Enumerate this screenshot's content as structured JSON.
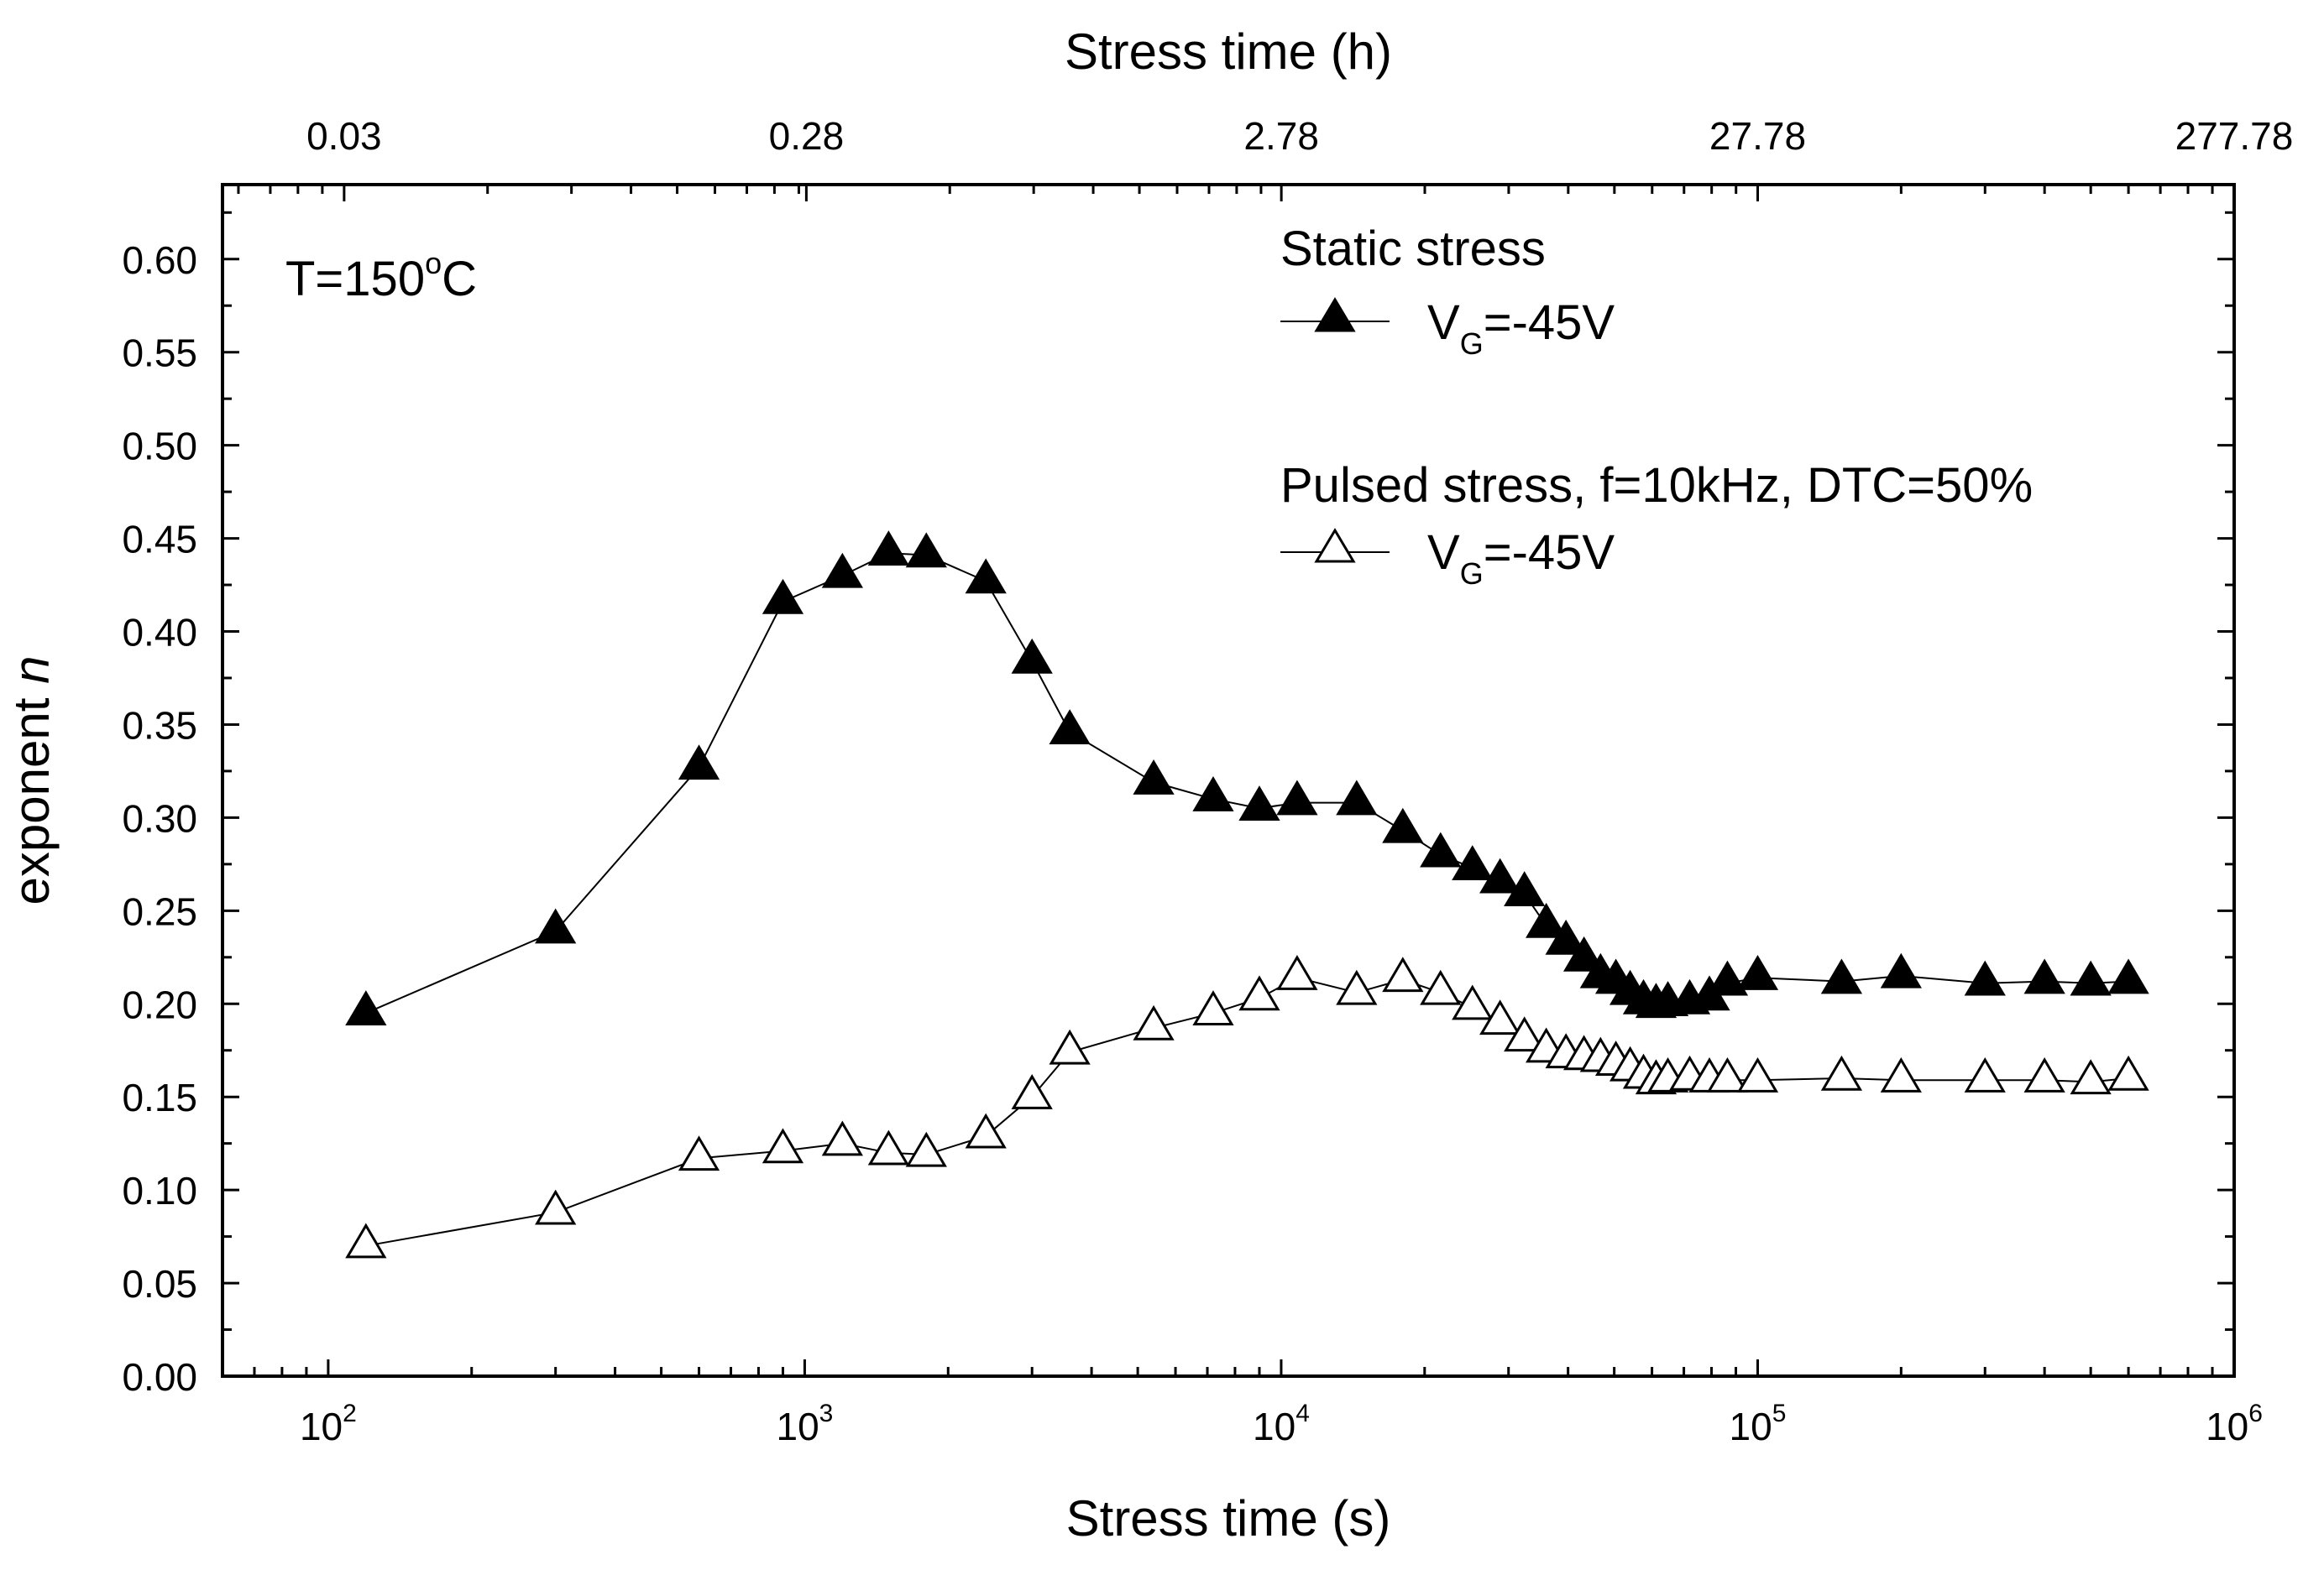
{
  "chart_data": {
    "type": "scatter",
    "x_scale": "log",
    "xlim": [
      60,
      1000000
    ],
    "ylim": [
      0,
      0.64
    ],
    "xlabel": "Stress time (s)",
    "top_xlabel": "Stress time (h)",
    "ylabel": "exponent",
    "ylabel_var": "n",
    "annotation": {
      "prefix": "T=150",
      "sup": "o",
      "suffix": "C"
    },
    "y_ticks": [
      "0.00",
      "0.05",
      "0.10",
      "0.15",
      "0.20",
      "0.25",
      "0.30",
      "0.35",
      "0.40",
      "0.45",
      "0.50",
      "0.55",
      "0.60"
    ],
    "x_ticks": [
      {
        "base": "10",
        "exp": "2"
      },
      {
        "base": "10",
        "exp": "3"
      },
      {
        "base": "10",
        "exp": "4"
      },
      {
        "base": "10",
        "exp": "5"
      },
      {
        "base": "10",
        "exp": "6"
      }
    ],
    "top_ticks": [
      "0.03",
      "0.28",
      "2.78",
      "27.78",
      "277.78"
    ],
    "legend": {
      "static_header": "Static stress",
      "pulsed_header": "Pulsed stress, f=10kHz, DTC=50%",
      "entry_prefix": "V",
      "entry_sub": "G",
      "entry_suffix": "=-45V"
    },
    "series": [
      {
        "marker": "filled-triangle",
        "x": [
          120,
          300,
          600,
          900,
          1200,
          1500,
          1800,
          2400,
          3000,
          3600,
          5400,
          7200,
          9000,
          10800,
          14400,
          18000,
          21600,
          25200,
          28800,
          32400,
          36000,
          39600,
          43200,
          46800,
          50400,
          54000,
          57600,
          61200,
          64800,
          72000,
          79200,
          86400,
          100000,
          150000,
          200000,
          300000,
          400000,
          500000,
          600000
        ],
        "y": [
          0.195,
          0.239,
          0.327,
          0.416,
          0.43,
          0.442,
          0.441,
          0.427,
          0.384,
          0.346,
          0.319,
          0.31,
          0.305,
          0.308,
          0.308,
          0.293,
          0.28,
          0.273,
          0.266,
          0.259,
          0.242,
          0.233,
          0.224,
          0.215,
          0.212,
          0.206,
          0.201,
          0.199,
          0.2,
          0.201,
          0.203,
          0.211,
          0.214,
          0.212,
          0.215,
          0.211,
          0.212,
          0.211,
          0.212
        ]
      },
      {
        "marker": "open-triangle",
        "x": [
          120,
          300,
          600,
          900,
          1200,
          1500,
          1800,
          2400,
          3000,
          3600,
          5400,
          7200,
          9000,
          10800,
          14400,
          18000,
          21600,
          25200,
          28800,
          32400,
          36000,
          39600,
          43200,
          46800,
          50400,
          54000,
          57600,
          61200,
          64800,
          72000,
          79200,
          86400,
          100000,
          150000,
          200000,
          300000,
          400000,
          500000,
          600000
        ],
        "y": [
          0.07,
          0.088,
          0.117,
          0.121,
          0.125,
          0.12,
          0.119,
          0.129,
          0.15,
          0.174,
          0.187,
          0.195,
          0.203,
          0.214,
          0.206,
          0.213,
          0.206,
          0.198,
          0.19,
          0.181,
          0.175,
          0.172,
          0.171,
          0.17,
          0.168,
          0.165,
          0.161,
          0.158,
          0.159,
          0.16,
          0.159,
          0.159,
          0.159,
          0.16,
          0.159,
          0.159,
          0.159,
          0.158,
          0.16
        ]
      }
    ]
  }
}
